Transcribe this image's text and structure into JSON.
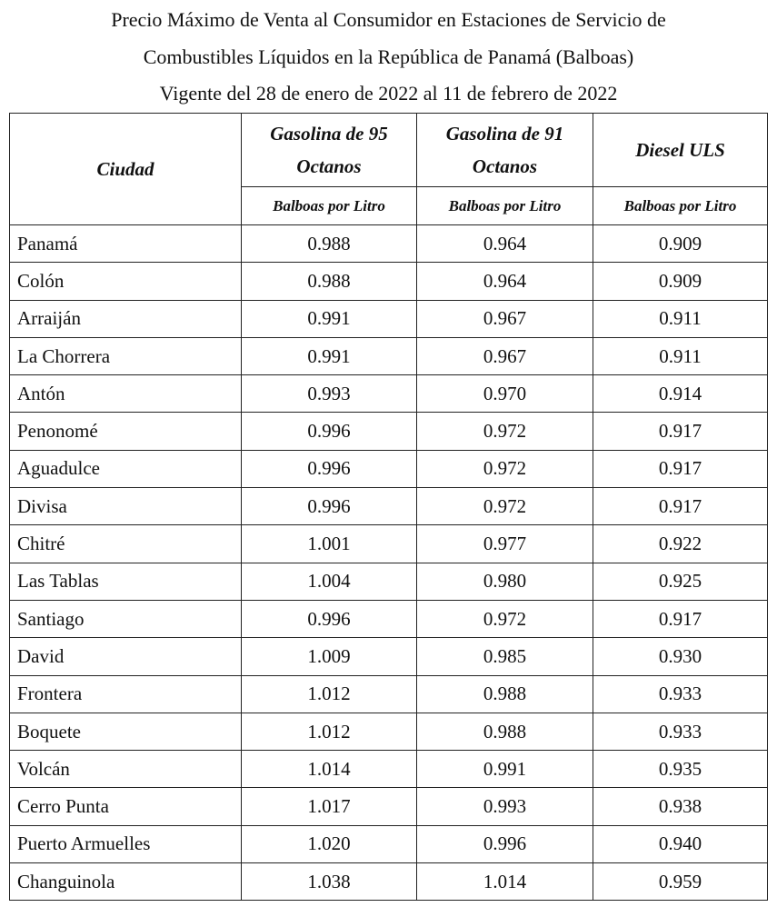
{
  "header": {
    "title_lines": [
      "Precio Máximo de Venta al Consumidor en Estaciones de Servicio de",
      "Combustibles Líquidos en la República de Panamá (Balboas)",
      "Vigente del 28 de enero de 2022 al 11 de febrero de 2022"
    ]
  },
  "table": {
    "columns": [
      "Ciudad",
      "Gasolina de 95 Octanos",
      "Gasolina de 91 Octanos",
      "Diesel ULS"
    ],
    "units": [
      "Balboas por Litro",
      "Balboas por Litro",
      "Balboas por Litro"
    ],
    "rows": [
      [
        "Panamá",
        "0.988",
        "0.964",
        "0.909"
      ],
      [
        "Colón",
        "0.988",
        "0.964",
        "0.909"
      ],
      [
        "Arraiján",
        "0.991",
        "0.967",
        "0.911"
      ],
      [
        "La Chorrera",
        "0.991",
        "0.967",
        "0.911"
      ],
      [
        "Antón",
        "0.993",
        "0.970",
        "0.914"
      ],
      [
        "Penonomé",
        "0.996",
        "0.972",
        "0.917"
      ],
      [
        "Aguadulce",
        "0.996",
        "0.972",
        "0.917"
      ],
      [
        "Divisa",
        "0.996",
        "0.972",
        "0.917"
      ],
      [
        "Chitré",
        "1.001",
        "0.977",
        "0.922"
      ],
      [
        "Las Tablas",
        "1.004",
        "0.980",
        "0.925"
      ],
      [
        "Santiago",
        "0.996",
        "0.972",
        "0.917"
      ],
      [
        "David",
        "1.009",
        "0.985",
        "0.930"
      ],
      [
        "Frontera",
        "1.012",
        "0.988",
        "0.933"
      ],
      [
        "Boquete",
        "1.012",
        "0.988",
        "0.933"
      ],
      [
        "Volcán",
        "1.014",
        "0.991",
        "0.935"
      ],
      [
        "Cerro Punta",
        "1.017",
        "0.993",
        "0.938"
      ],
      [
        "Puerto Armuelles",
        "1.020",
        "0.996",
        "0.940"
      ],
      [
        "Changuinola",
        "1.038",
        "1.014",
        "0.959"
      ]
    ]
  }
}
